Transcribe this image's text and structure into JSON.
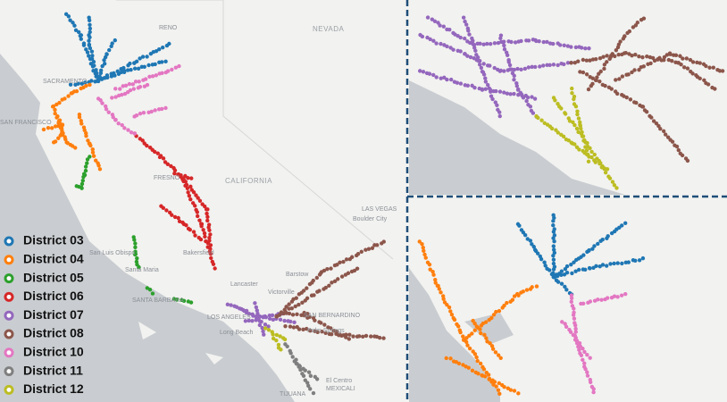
{
  "legend": {
    "items": [
      {
        "label": "District 03",
        "color": "#1f77b4"
      },
      {
        "label": "District 04",
        "color": "#ff7f0e"
      },
      {
        "label": "District 05",
        "color": "#2ca02c"
      },
      {
        "label": "District 06",
        "color": "#d62728"
      },
      {
        "label": "District 07",
        "color": "#9467bd"
      },
      {
        "label": "District 08",
        "color": "#8c564b"
      },
      {
        "label": "District 10",
        "color": "#e377c2"
      },
      {
        "label": "District 11",
        "color": "#7f7f7f"
      },
      {
        "label": "District 12",
        "color": "#bcbd22"
      }
    ]
  },
  "map_labels": [
    "NEVADA",
    "CALIFORNIA",
    "RENO",
    "SACRAMENTO",
    "SAN FRANCISCO",
    "FRESNO",
    "LAS VEGAS",
    "LOS ANGELES",
    "SAN BERNARDINO",
    "SANTA BARBARA",
    "Bakersfield",
    "Lancaster",
    "Victorville",
    "Barstow",
    "Palm Springs",
    "El Centro",
    "MEXICALI",
    "TIJUANA",
    "Boulder City",
    "San Luis Obispo",
    "Santa Maria",
    "Long Beach"
  ]
}
